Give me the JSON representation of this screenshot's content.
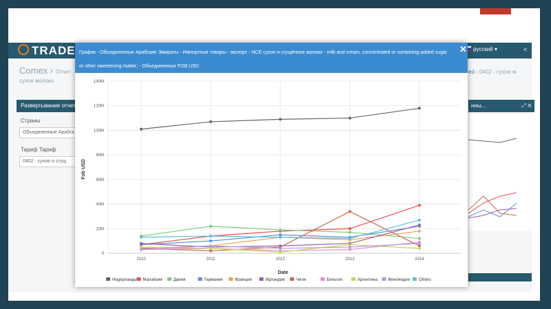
{
  "app": {
    "logo": "TRADE",
    "language": "русский",
    "breadcrumb": "Comex",
    "breadcrumb_next": "Отчет",
    "breadcrumb_sub": "сухое молоко",
    "breadcrumb_right_hl": "ed",
    "breadcrumb_right_rest": "0402 - сухое м",
    "left_panel_title": "Развертывание отчет",
    "field1_label": "Страны",
    "field1_value": "Объединенные Арабск",
    "field2_label": "Тариф Тариф",
    "field2_value": "0402 - сухое и сгущ",
    "right_panel_title": "нны..."
  },
  "modal": {
    "title": "График - Объединенные Арабские Эмираты - Импортные товары - экспорт - NCE сухое и сгущённое молоко - milk and cream, concentrated or containing added sugar or other sweetening matter; - Объединенных FOB USD"
  },
  "colors": {
    "header": "#27596f",
    "modal_title": "#3b8bd1",
    "accent": "#c0392b"
  },
  "chart_data": {
    "type": "line",
    "xlabel": "Date",
    "ylabel": "Fob USD",
    "x": [
      "2010",
      "2011",
      "2012",
      "2013",
      "2014"
    ],
    "ylim": [
      0,
      140
    ],
    "yticks": [
      "0",
      "20M",
      "40M",
      "60M",
      "80M",
      "100M",
      "120M",
      "140M"
    ],
    "grid": true,
    "legend_position": "bottom",
    "series": [
      {
        "name": "Нидерланды",
        "color": "#666666",
        "values": [
          101,
          107,
          109,
          110,
          118
        ]
      },
      {
        "name": "Малайзия",
        "color": "#e8504f",
        "values": [
          7,
          14,
          18,
          20,
          39
        ]
      },
      {
        "name": "Дания",
        "color": "#7ccf7a",
        "values": [
          14,
          22,
          19,
          17,
          12
        ]
      },
      {
        "name": "Германия",
        "color": "#5a93d6",
        "values": [
          7,
          10,
          15,
          13,
          22
        ]
      },
      {
        "name": "Франция",
        "color": "#f2a34f",
        "values": [
          4,
          6,
          13,
          11,
          18
        ]
      },
      {
        "name": "Ирландия",
        "color": "#9b59b6",
        "values": [
          8,
          5,
          6,
          8,
          23
        ]
      },
      {
        "name": "Чили",
        "color": "#c8694f",
        "values": [
          4,
          2,
          5,
          34,
          6
        ]
      },
      {
        "name": "Бельгия",
        "color": "#e88ccf",
        "values": [
          3,
          4,
          2,
          3,
          9
        ]
      },
      {
        "name": "Аргентина",
        "color": "#c5d94a",
        "values": [
          5,
          4,
          1,
          7,
          4
        ]
      },
      {
        "name": "Финляндия",
        "color": "#b39ddb",
        "values": [
          3,
          6,
          4,
          5,
          8
        ]
      },
      {
        "name": "Others",
        "color": "#5bc0de",
        "values": [
          13,
          14,
          13,
          12,
          27
        ]
      }
    ]
  }
}
